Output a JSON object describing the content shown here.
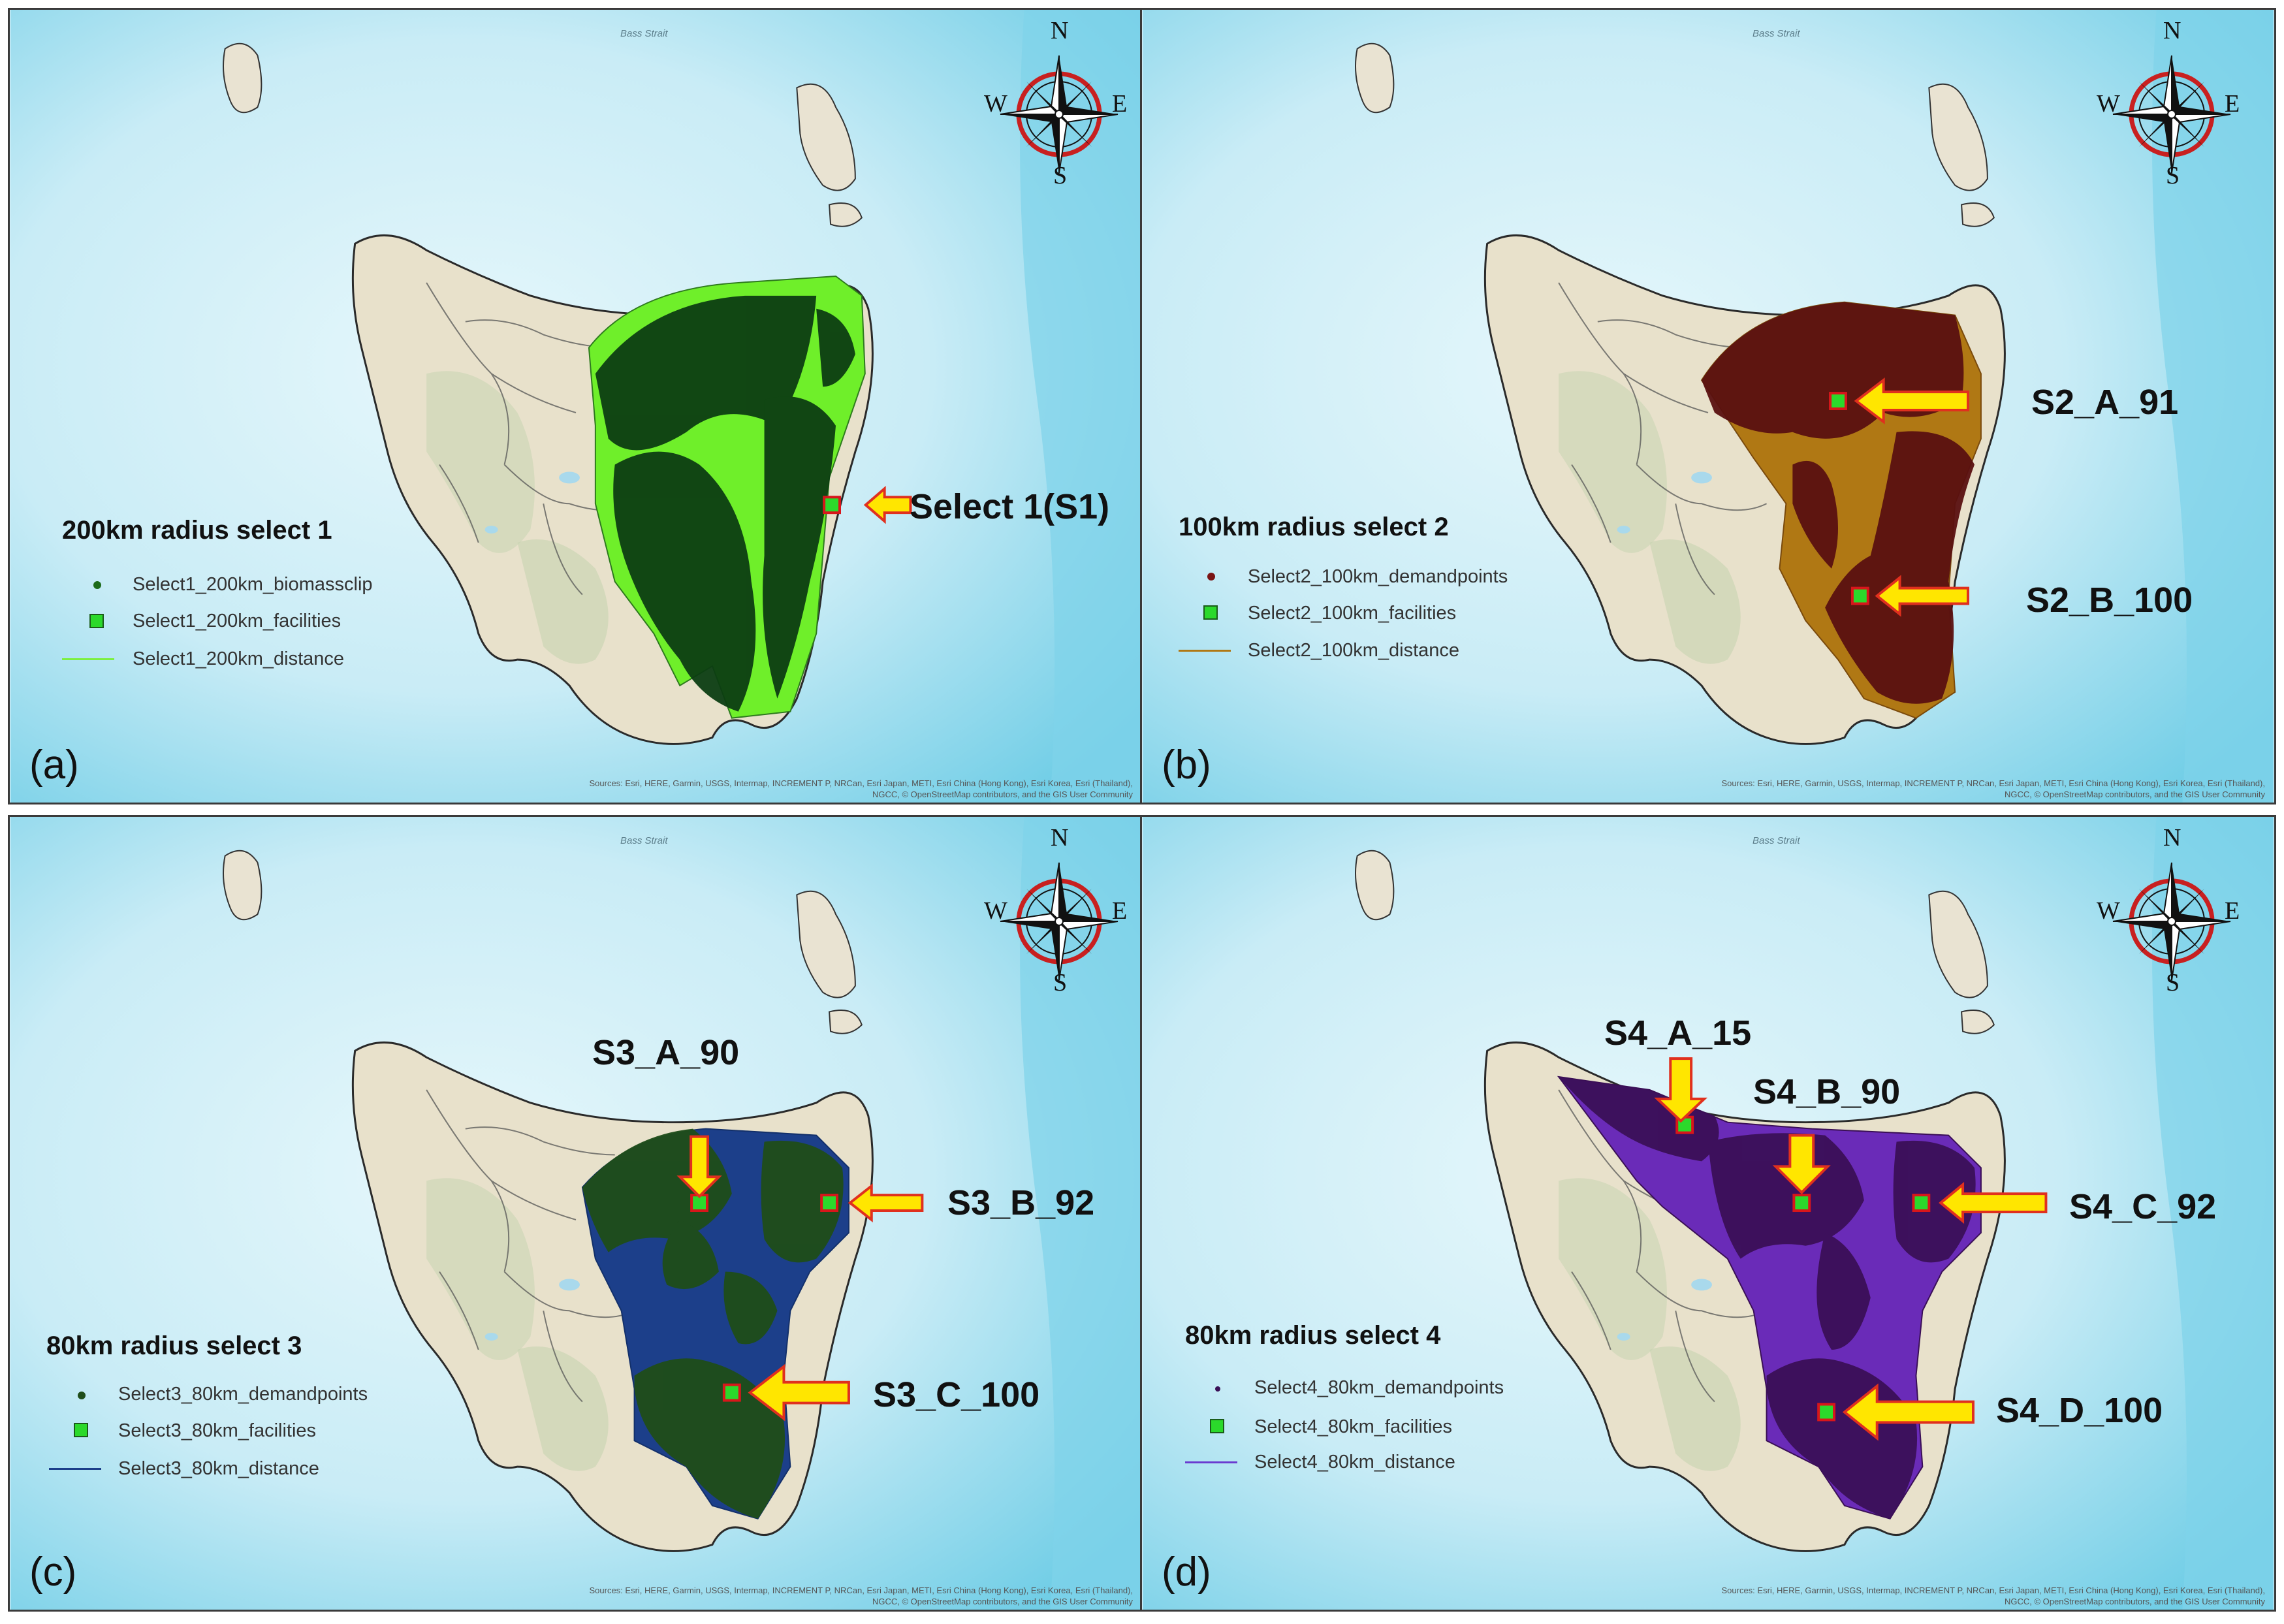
{
  "panels": [
    {
      "letter": "(a)",
      "legend_title": "200km radius select 1",
      "legend": [
        "Select1_200km_biomassclip",
        "Select1_200km_facilities",
        "Select1_200km_distance"
      ],
      "colors": {
        "points": "#1d6b1a",
        "fill": "#6fef2a",
        "line": "#7cf040"
      },
      "sites": [
        "Select 1(S1)"
      ]
    },
    {
      "letter": "(b)",
      "legend_title": "100km radius select 2",
      "legend": [
        "Select2_100km_demandpoints",
        "Select2_100km_facilities",
        "Select2_100km_distance"
      ],
      "colors": {
        "points": "#5a1010",
        "fill": "#b07814",
        "line": "#b07814"
      },
      "sites": [
        "S2_A_91",
        "S2_B_100"
      ]
    },
    {
      "letter": "(c)",
      "legend_title": "80km radius select 3",
      "legend": [
        "Select3_80km_demandpoints",
        "Select3_80km_facilities",
        "Select3_80km_distance"
      ],
      "colors": {
        "points": "#1f4d1a",
        "fill": "#1c3f8a",
        "line": "#1c3f8a"
      },
      "sites": [
        "S3_A_90",
        "S3_B_92",
        "S3_C_100"
      ]
    },
    {
      "letter": "(d)",
      "legend_title": "80km radius select 4",
      "legend": [
        "Select4_80km_demandpoints",
        "Select4_80km_facilities",
        "Select4_80km_distance"
      ],
      "colors": {
        "points": "#3a0f56",
        "fill": "#6a2bb8",
        "line": "#6a3bd0"
      },
      "sites": [
        "S4_A_15",
        "S4_B_90",
        "S4_C_92",
        "S4_D_100"
      ]
    }
  ],
  "compass": {
    "n": "N",
    "s": "S",
    "e": "E",
    "w": "W"
  },
  "sea_label": "Bass Strait",
  "attribution": "Sources: Esri, HERE, Garmin, USGS, Intermap, INCREMENT P, NRCan, Esri Japan, METI, Esri China (Hong Kong), Esri Korea, Esri (Thailand), NGCC, © OpenStreetMap contributors, and the GIS User Community",
  "facility_color": "#2bd92b",
  "facility_border": "#d8161b",
  "arrow_color": "#ffe600",
  "arrow_border": "#e0301e",
  "island_fill": "#e9e3d2"
}
